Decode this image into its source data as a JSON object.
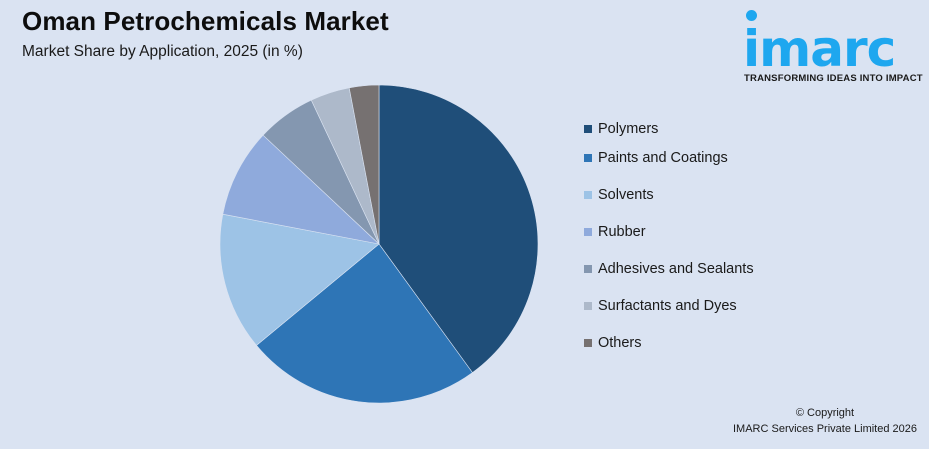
{
  "header": {
    "title": "Oman Petrochemicals Market",
    "subtitle": "Market Share by Application, 2025 (in %)"
  },
  "logo": {
    "word": "imarc",
    "tagline": "TRANSFORMING IDEAS INTO IMPACT",
    "color": "#1ea7ef"
  },
  "footer": {
    "copyright": "© Copyright",
    "company": "IMARC Services Private Limited 2026"
  },
  "chart_data": {
    "type": "pie",
    "title": "Oman Petrochemicals Market",
    "subtitle": "Market Share by Application, 2025 (in %)",
    "categories": [
      "Polymers",
      "Paints and Coatings",
      "Solvents",
      "Rubber",
      "Adhesives and Sealants",
      "Surfactants and Dyes",
      "Others"
    ],
    "values": [
      40,
      24,
      14,
      9,
      6,
      4,
      3
    ],
    "colors": [
      "#1f4e79",
      "#2e75b6",
      "#9dc3e6",
      "#8faadc",
      "#8497b0",
      "#adb9ca",
      "#767171"
    ],
    "start_angle": "12 o'clock, clockwise",
    "legend_position": "right",
    "data_labels": false
  },
  "legend": {
    "items": [
      {
        "label": "Polymers",
        "color": "#1f4e79"
      },
      {
        "label": "Paints and Coatings",
        "color": "#2e75b6"
      },
      {
        "label": "Solvents",
        "color": "#9dc3e6"
      },
      {
        "label": "Rubber",
        "color": "#8faadc"
      },
      {
        "label": "Adhesives and Sealants",
        "color": "#8497b0"
      },
      {
        "label": "Surfactants and Dyes",
        "color": "#adb9ca"
      },
      {
        "label": "Others",
        "color": "#767171"
      }
    ]
  }
}
